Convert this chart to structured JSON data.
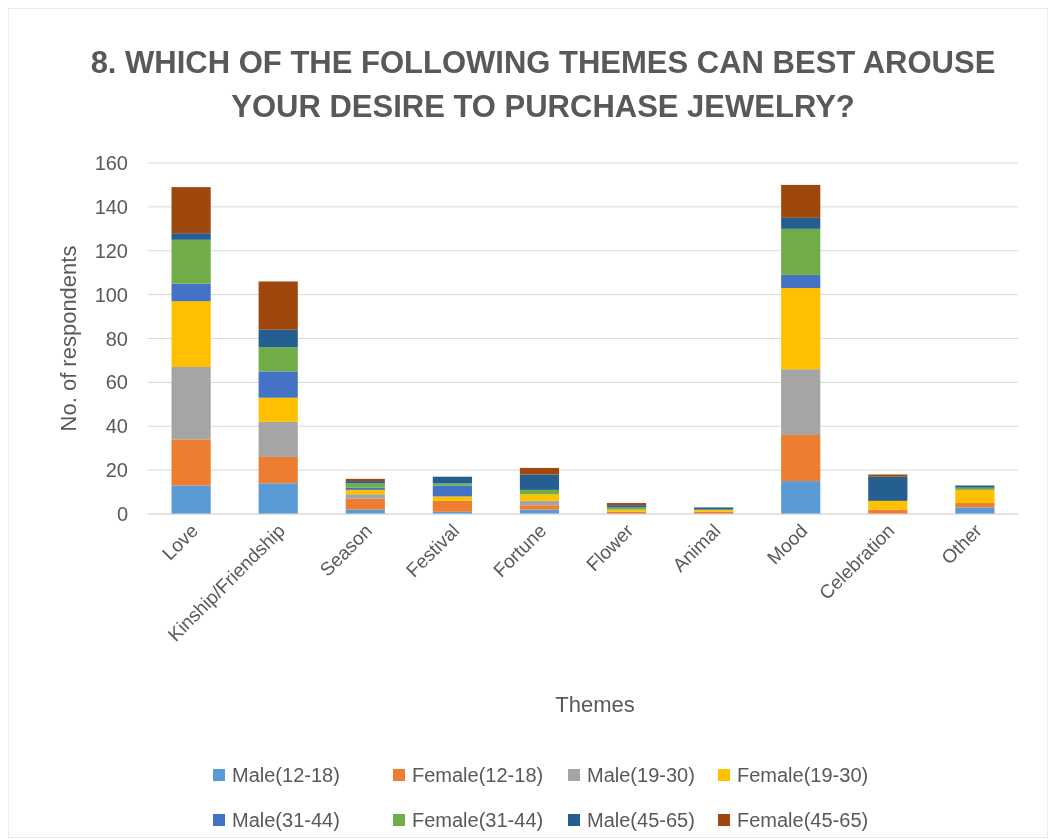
{
  "chart_data": {
    "type": "bar",
    "stacked": true,
    "title": "8. WHICH OF THE FOLLOWING THEMES CAN BEST AROUSE YOUR DESIRE TO PURCHASE JEWELRY?",
    "xlabel": "Themes",
    "ylabel": "No. of respondents",
    "categories": [
      "Love",
      "Kinship/Friendship",
      "Season",
      "Festival",
      "Fortune",
      "Flower",
      "Animal",
      "Mood",
      "Celebration",
      "Other"
    ],
    "series": [
      {
        "name": "Male(12-18)",
        "color": "#5b9bd5",
        "values": [
          13,
          14,
          2,
          1,
          2,
          0,
          0,
          15,
          0,
          3
        ]
      },
      {
        "name": "Female(12-18)",
        "color": "#ed7d31",
        "values": [
          21,
          12,
          5,
          5,
          2,
          1,
          1,
          21,
          2,
          2
        ]
      },
      {
        "name": "Male(19-30)",
        "color": "#a5a5a5",
        "values": [
          33,
          16,
          2,
          0,
          2,
          0,
          0,
          30,
          0,
          0
        ]
      },
      {
        "name": "Female(19-30)",
        "color": "#ffc000",
        "values": [
          30,
          11,
          2,
          2,
          3,
          1,
          1,
          37,
          4,
          6
        ]
      },
      {
        "name": "Male(31-44)",
        "color": "#4472c4",
        "values": [
          8,
          12,
          1,
          5,
          0,
          0,
          0,
          6,
          0,
          0
        ]
      },
      {
        "name": "Female(31-44)",
        "color": "#70ad47",
        "values": [
          20,
          11,
          2,
          1,
          2,
          1,
          0,
          21,
          0,
          1
        ]
      },
      {
        "name": "Male(45-65)",
        "color": "#255e91",
        "values": [
          3,
          8,
          1,
          3,
          7,
          1,
          1,
          5,
          11,
          1
        ]
      },
      {
        "name": "Female(45-65)",
        "color": "#9e480e",
        "values": [
          21,
          22,
          1,
          0,
          3,
          1,
          0,
          15,
          1,
          0
        ]
      }
    ],
    "ylim": [
      0,
      160
    ],
    "yticks": [
      0,
      20,
      40,
      60,
      80,
      100,
      120,
      140,
      160
    ],
    "grid": "y",
    "legend": "bottom"
  }
}
